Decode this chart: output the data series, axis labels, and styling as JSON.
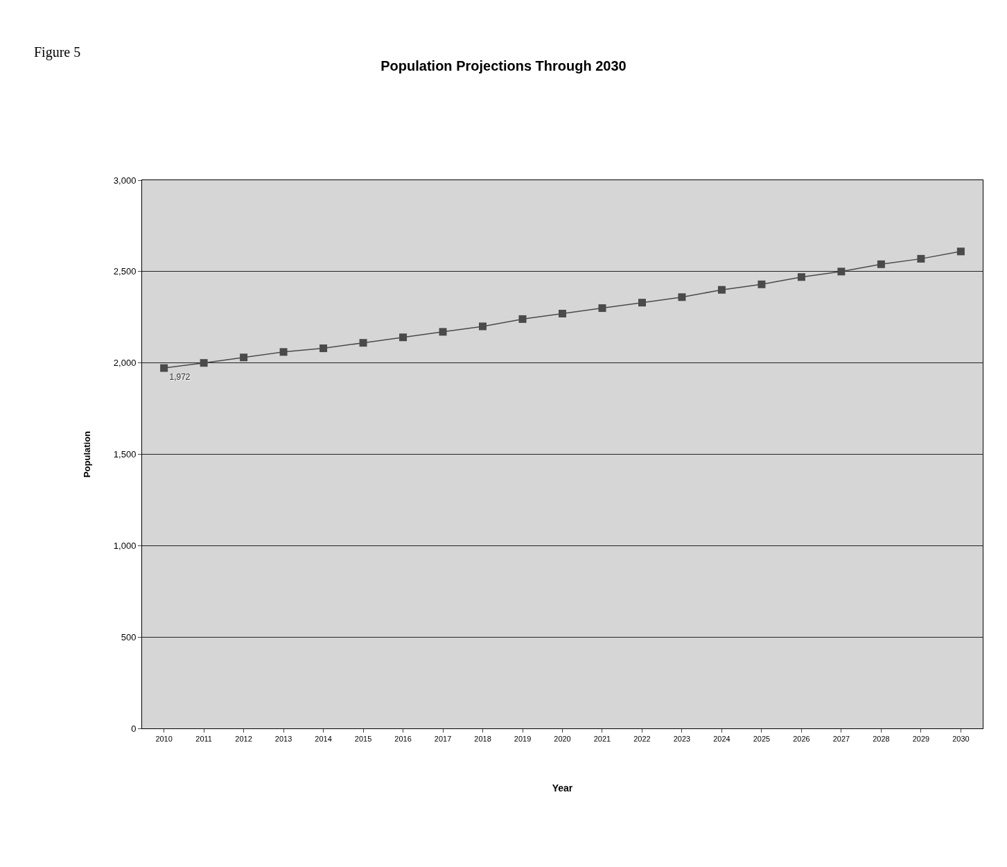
{
  "chart_data": {
    "type": "line",
    "title": "Population Projections Through 2030",
    "xlabel": "Year",
    "ylabel": "Population",
    "annotations": [
      "Figure 5"
    ],
    "categories": [
      "2010",
      "2011",
      "2012",
      "2013",
      "2014",
      "2015",
      "2016",
      "2017",
      "2018",
      "2019",
      "2020",
      "2021",
      "2022",
      "2023",
      "2024",
      "2025",
      "2026",
      "2027",
      "2028",
      "2029",
      "2030"
    ],
    "series": [
      {
        "color": "#4a4a4a",
        "values": [
          1972,
          2000,
          2030,
          2060,
          2080,
          2110,
          2140,
          2170,
          2200,
          2240,
          2270,
          2300,
          2330,
          2360,
          2400,
          2430,
          2470,
          2500,
          2540,
          2570,
          2610
        ],
        "value_labels": [
          "1,972",
          null,
          null,
          null,
          null,
          null,
          null,
          null,
          null,
          null,
          null,
          null,
          null,
          null,
          null,
          null,
          null,
          null,
          null,
          null,
          null
        ]
      }
    ],
    "ylim": [
      0,
      3000
    ],
    "yticks": [
      {
        "value": 0,
        "label": "0"
      },
      {
        "value": 500,
        "label": "500"
      },
      {
        "value": 1000,
        "label": "1,000"
      },
      {
        "value": 1500,
        "label": "1,500"
      },
      {
        "value": 2000,
        "label": "2,000"
      },
      {
        "value": 2500,
        "label": "2,500"
      },
      {
        "value": 3000,
        "label": "3,000"
      }
    ],
    "grid": "y",
    "legend": false,
    "marker": "square",
    "line_style": "solid"
  }
}
